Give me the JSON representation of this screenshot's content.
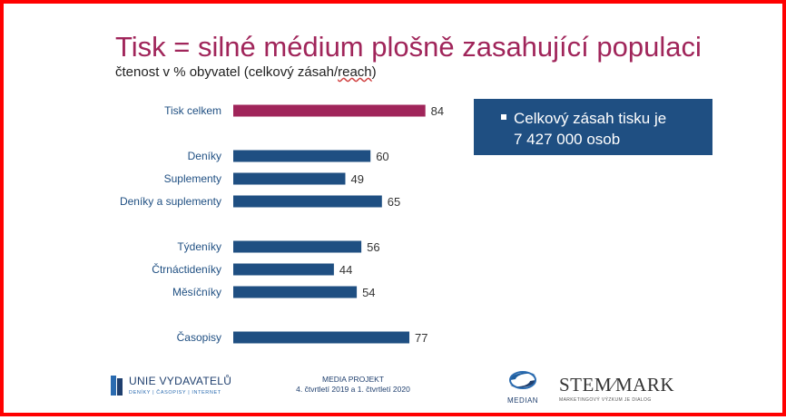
{
  "title": "Tisk = silné médium plošně zasahující populaci",
  "subtitle": {
    "main": "čtenost v % obyvatel (celkový zásah/",
    "reach": "reach",
    "close": ")"
  },
  "callout": {
    "line1": "Celkový zásah tisku je",
    "line2": "7 427 000 osob"
  },
  "colors": {
    "highlight": "#a0255a",
    "bar": "#1f4f82",
    "label": "#1f4f82",
    "frame": "#ff0000"
  },
  "chart_data": {
    "type": "bar",
    "orientation": "horizontal",
    "title": "Tisk = silné médium plošně zasahující populaci",
    "xlabel": "",
    "ylabel": "čtenost v % obyvatel (celkový zásah/reach)",
    "categories": [
      "Tisk celkem",
      "Deníky",
      "Suplementy",
      "Deníky a suplementy",
      "Týdeníky",
      "Čtrnáctideníky",
      "Měsíčníky",
      "Časopisy"
    ],
    "values": [
      84,
      60,
      49,
      65,
      56,
      44,
      54,
      77
    ],
    "highlight": [
      true,
      false,
      false,
      false,
      false,
      false,
      false,
      false
    ],
    "data_labels": true,
    "grid": false
  },
  "footer": {
    "union_name": "UNIE VYDAVATELŮ",
    "union_tagline": "DENÍKY | ČASOPISY | INTERNET",
    "project_line1": "MEDIA PROJEKT",
    "project_line2": "4. čtvrtletí 2019 a 1. čtvrtletí 2020",
    "median": "MEDIAN",
    "stem_name": "STEM⁄MARK",
    "stem_tagline": "MARKETINGOVÝ VÝZKUM JE DIALOG"
  },
  "icons": [
    "book-logo-icon",
    "median-logo-icon",
    "bullet-icon"
  ]
}
